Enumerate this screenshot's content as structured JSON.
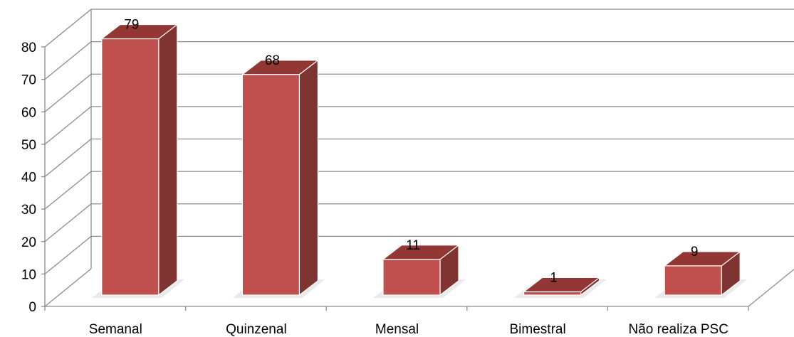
{
  "chart_data": {
    "type": "bar",
    "style": "3d-column",
    "categories": [
      "Semanal",
      "Quinzenal",
      "Mensal",
      "Bimestral",
      "Não realiza PSC"
    ],
    "values": [
      79,
      68,
      11,
      1,
      9
    ],
    "data_labels": [
      "79",
      "68",
      "11",
      "1",
      "9"
    ],
    "y_ticks": [
      "0",
      "10",
      "20",
      "30",
      "40",
      "50",
      "60",
      "70",
      "80"
    ],
    "ylim": [
      0,
      80
    ],
    "grid": true,
    "legend": "none",
    "colors": {
      "bar_front": "#c0504d",
      "bar_side": "#7f3431",
      "bar_top": "#923734",
      "bar_edge": "#ffffff",
      "grid": "#8c8c8c",
      "axis": "#8c8c8c"
    }
  }
}
